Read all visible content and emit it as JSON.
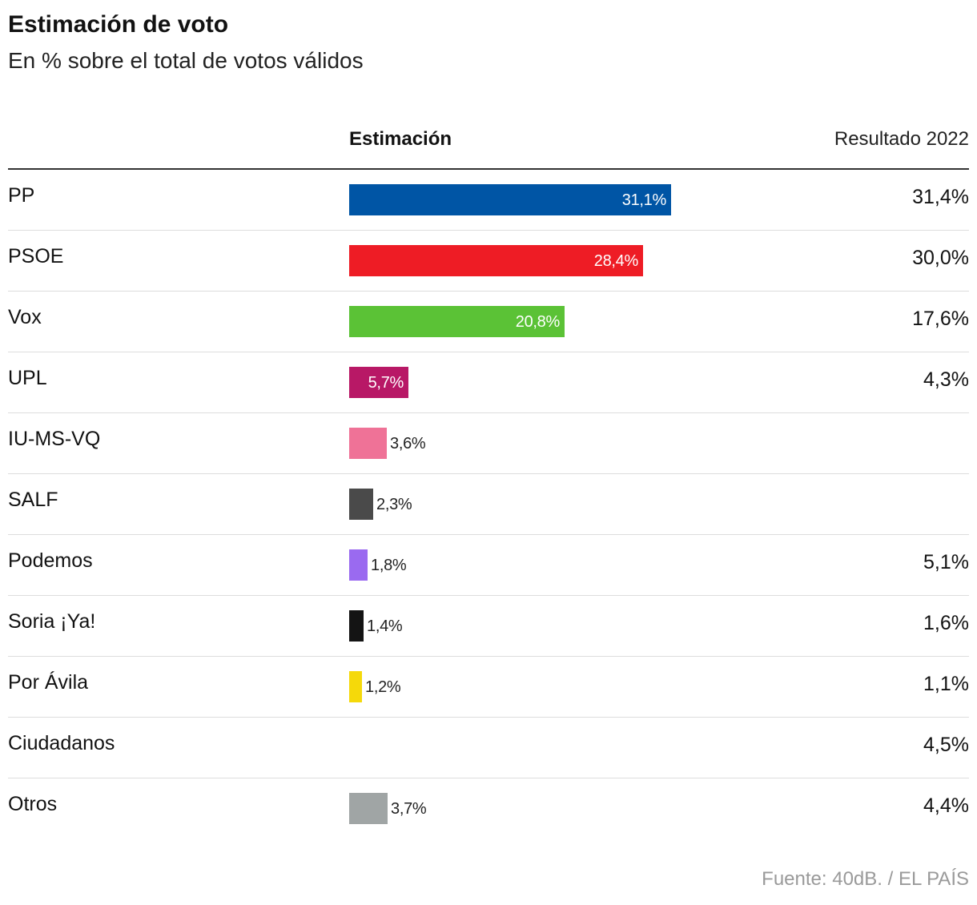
{
  "header": {
    "title": "Estimación de voto",
    "subtitle": "En % sobre el total de votos válidos"
  },
  "columns": {
    "estimate": "Estimación",
    "result": "Resultado 2022"
  },
  "source": "Fuente: 40dB. / EL PAÍS",
  "chart_data": {
    "type": "bar",
    "orientation": "horizontal",
    "title": "Estimación de voto",
    "subtitle": "En % sobre el total de votos válidos",
    "unit": "%",
    "categories": [
      "PP",
      "PSOE",
      "Vox",
      "UPL",
      "IU-MS-VQ",
      "SALF",
      "Podemos",
      "Soria ¡Ya!",
      "Por Ávila",
      "Ciudadanos",
      "Otros"
    ],
    "series": [
      {
        "name": "Estimación",
        "values": [
          31.1,
          28.4,
          20.8,
          5.7,
          3.6,
          2.3,
          1.8,
          1.4,
          1.2,
          null,
          3.7
        ],
        "labels": [
          "31,1%",
          "28,4%",
          "20,8%",
          "5,7%",
          "3,6%",
          "2,3%",
          "1,8%",
          "1,4%",
          "1,2%",
          "",
          "3,7%"
        ],
        "colors": [
          "#0055a5",
          "#ee1c25",
          "#5bc236",
          "#b81866",
          "#ef7297",
          "#4a4a4a",
          "#9a6af0",
          "#141414",
          "#f5d90a",
          "#cccccc",
          "#a0a5a5"
        ]
      },
      {
        "name": "Resultado 2022",
        "values": [
          31.4,
          30.0,
          17.6,
          4.3,
          null,
          null,
          5.1,
          1.6,
          1.1,
          4.5,
          4.4
        ],
        "labels": [
          "31,4%",
          "30,0%",
          "17,6%",
          "4,3%",
          "",
          "",
          "5,1%",
          "1,6%",
          "1,1%",
          "4,5%",
          "4,4%"
        ]
      }
    ]
  }
}
